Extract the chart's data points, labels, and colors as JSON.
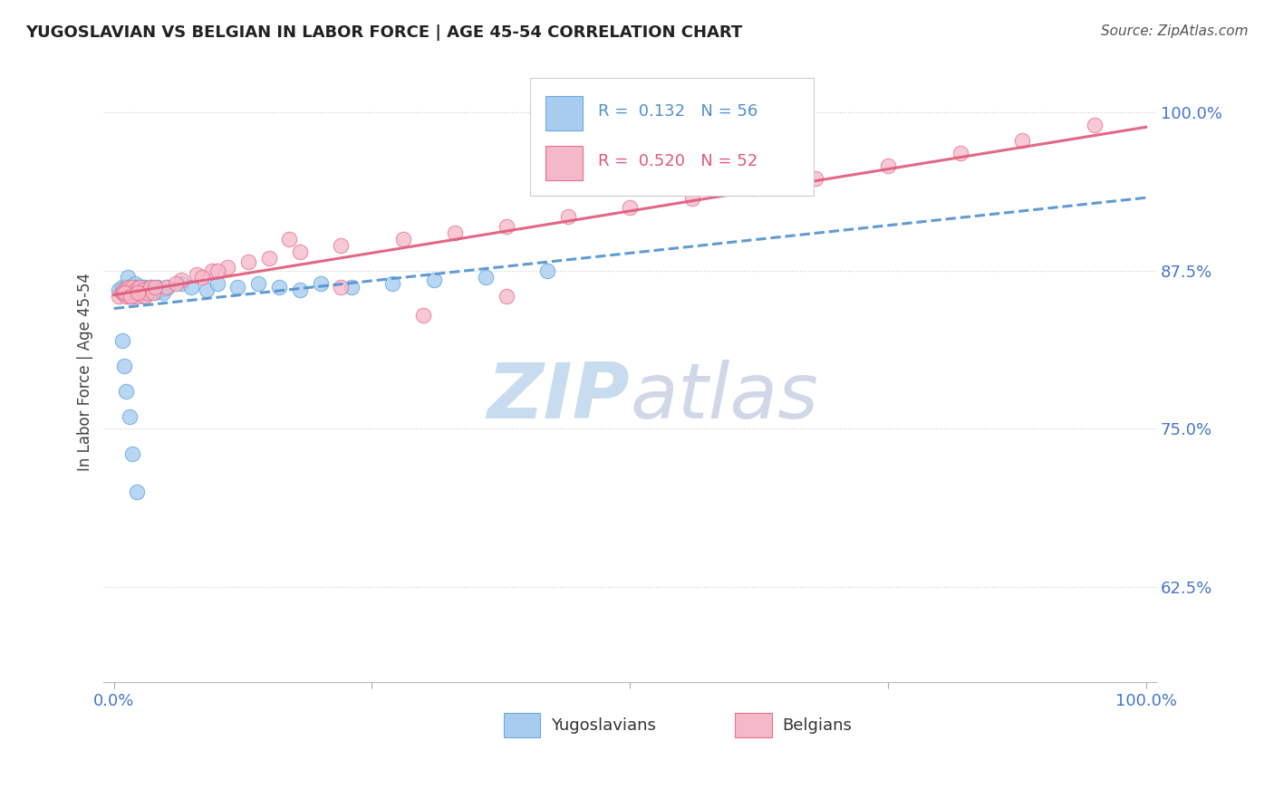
{
  "title": "YUGOSLAVIAN VS BELGIAN IN LABOR FORCE | AGE 45-54 CORRELATION CHART",
  "source": "Source: ZipAtlas.com",
  "ylabel": "In Labor Force | Age 45-54",
  "xlim": [
    -0.01,
    1.01
  ],
  "ylim": [
    0.55,
    1.04
  ],
  "yticks": [
    0.625,
    0.75,
    0.875,
    1.0
  ],
  "ytick_labels": [
    "62.5%",
    "75.0%",
    "87.5%",
    "100.0%"
  ],
  "xticks": [
    0.0,
    0.25,
    0.5,
    0.75,
    1.0
  ],
  "xtick_labels": [
    "0.0%",
    "",
    "",
    "",
    "100.0%"
  ],
  "legend_r_blue": "0.132",
  "legend_n_blue": "56",
  "legend_r_pink": "0.520",
  "legend_n_pink": "52",
  "blue_face": "#A8CCF0",
  "blue_edge": "#6AAADE",
  "pink_face": "#F5B8C8",
  "pink_edge": "#E87090",
  "blue_line": "#5090D0",
  "pink_line": "#E05878",
  "watermark_color": "#D8E8F5",
  "title_color": "#222222",
  "source_color": "#555555",
  "ylabel_color": "#444444",
  "tick_label_color": "#4477CC",
  "grid_color": "#CCCCCC",
  "legend_box_color": "#DDDDDD",
  "bottom_legend_label_color": "#333333"
}
